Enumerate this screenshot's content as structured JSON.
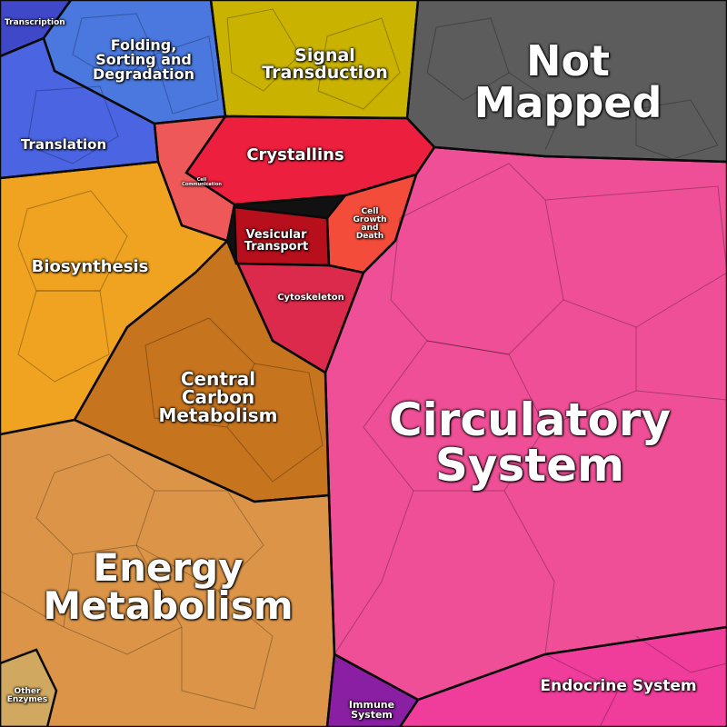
{
  "regions": [
    {
      "key": "transcription",
      "label": "Transcription",
      "color": "#3f48c8"
    },
    {
      "key": "folding",
      "label": "Folding,\nSorting and\nDegradation",
      "color": "#4a78de"
    },
    {
      "key": "translation",
      "label": "Translation",
      "color": "#4a64e2"
    },
    {
      "key": "signal",
      "label": "Signal\nTransduction",
      "color": "#c9b200"
    },
    {
      "key": "not_mapped",
      "label": "Not\nMapped",
      "color": "#5c5c5c"
    },
    {
      "key": "crystallins",
      "label": "Crystallins",
      "color": "#ec1f3e"
    },
    {
      "key": "cell_communication",
      "label": "Cell\nCommunication",
      "color": "#ee5858"
    },
    {
      "key": "vesicular",
      "label": "Vesicular\nTransport",
      "color": "#b70f1c"
    },
    {
      "key": "cell_growth",
      "label": "Cell\nGrowth\nand\nDeath",
      "color": "#f34c3a"
    },
    {
      "key": "cytoskeleton",
      "label": "Cytoskeleton",
      "color": "#dc2a4c"
    },
    {
      "key": "biosynthesis",
      "label": "Biosynthesis",
      "color": "#f0a320"
    },
    {
      "key": "central_carbon",
      "label": "Central\nCarbon\nMetabolism",
      "color": "#c7741f"
    },
    {
      "key": "energy",
      "label": "Energy\nMetabolism",
      "color": "#dc9548"
    },
    {
      "key": "other_enzymes",
      "label": "Other\nEnzymes",
      "color": "#d0a860"
    },
    {
      "key": "circulatory",
      "label": "Circulatory\nSystem",
      "color": "#ef4f96"
    },
    {
      "key": "endocrine",
      "label": "Endocrine System",
      "color": "#f03d9c"
    },
    {
      "key": "immune",
      "label": "Immune\nSystem",
      "color": "#8a1fa3"
    }
  ]
}
